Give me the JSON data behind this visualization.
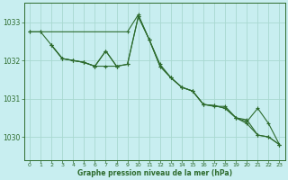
{
  "title": "Graphe pression niveau de la mer (hPa)",
  "bg_color": "#c8eef0",
  "grid_color": "#a8d8d0",
  "line_color": "#2d6b2d",
  "xlim": [
    -0.5,
    23.5
  ],
  "ylim": [
    1029.4,
    1033.5
  ],
  "yticks": [
    1030,
    1031,
    1032,
    1033
  ],
  "xticks": [
    0,
    1,
    2,
    3,
    4,
    5,
    6,
    7,
    8,
    9,
    10,
    11,
    12,
    13,
    14,
    15,
    16,
    17,
    18,
    19,
    20,
    21,
    22,
    23
  ],
  "line1_x": [
    0,
    1,
    9,
    10,
    11,
    12,
    13,
    14,
    15,
    16,
    17,
    18,
    19,
    20,
    21,
    22,
    23
  ],
  "line1_y": [
    1032.75,
    1032.75,
    1032.75,
    1033.2,
    1032.55,
    1031.9,
    1031.55,
    1031.3,
    1031.2,
    1030.85,
    1030.8,
    1030.8,
    1030.5,
    1030.4,
    1030.75,
    1030.35,
    1029.8
  ],
  "line2_x": [
    2,
    3,
    4,
    5,
    6,
    7,
    8,
    9,
    10,
    11,
    12,
    13,
    14,
    15,
    16,
    17,
    18,
    19,
    20,
    21,
    22,
    23
  ],
  "line2_y": [
    1032.4,
    1032.05,
    1032.0,
    1031.95,
    1031.85,
    1032.25,
    1031.85,
    1031.9,
    1033.15,
    1032.55,
    1031.85,
    1031.55,
    1031.3,
    1031.2,
    1030.85,
    1030.82,
    1030.75,
    1030.5,
    1030.45,
    1030.05,
    1030.0,
    1029.8
  ],
  "line3_x": [
    0,
    1,
    2,
    3,
    4,
    5,
    6,
    7,
    8,
    9,
    10,
    11,
    12,
    13,
    14,
    15,
    16,
    17,
    18,
    19,
    20,
    21,
    22,
    23
  ],
  "line3_y": [
    1032.75,
    1032.75,
    1032.4,
    1032.05,
    1032.0,
    1031.95,
    1031.85,
    1031.85,
    1031.85,
    1031.9,
    1033.15,
    1032.55,
    1031.85,
    1031.55,
    1031.3,
    1031.2,
    1030.85,
    1030.82,
    1030.75,
    1030.5,
    1030.35,
    1030.05,
    1030.0,
    1029.8
  ],
  "line4_x": [
    2,
    3,
    4,
    5,
    6,
    7,
    8
  ],
  "line4_y": [
    1032.4,
    1032.05,
    1032.0,
    1031.95,
    1031.85,
    1032.25,
    1031.85
  ]
}
